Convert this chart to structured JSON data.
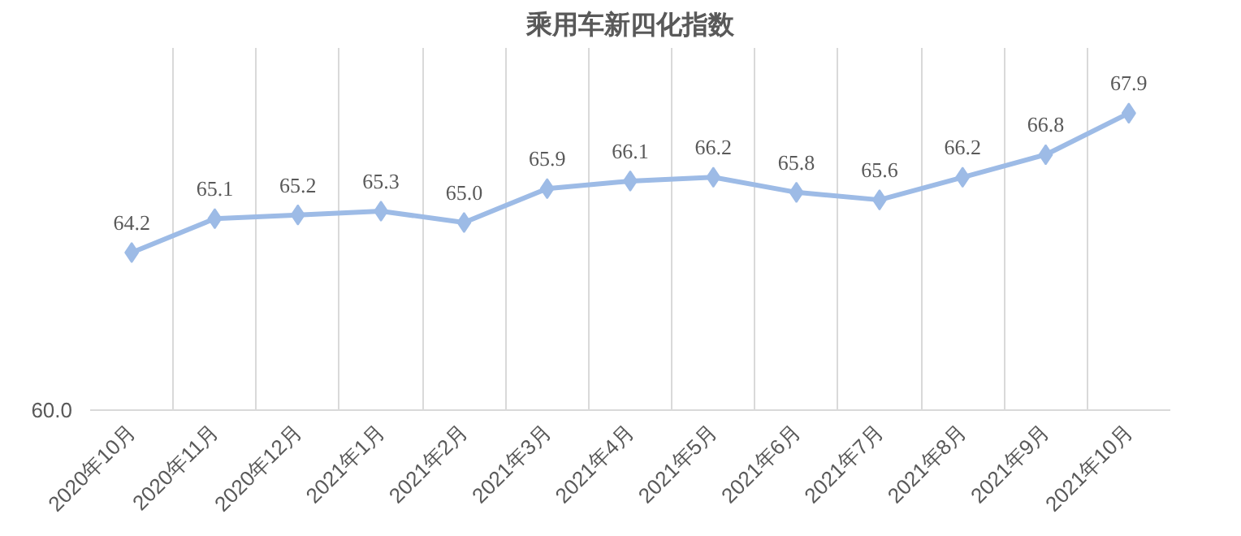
{
  "chart_data": {
    "type": "line",
    "title": "乘用车新四化指数",
    "categories": [
      "2020年10月",
      "2020年11月",
      "2020年12月",
      "2021年1月",
      "2021年2月",
      "2021年3月",
      "2021年4月",
      "2021年5月",
      "2021年6月",
      "2021年7月",
      "2021年8月",
      "2021年9月",
      "2021年10月"
    ],
    "series": [
      {
        "color": "#9dbbe6",
        "values": [
          64.2,
          65.1,
          65.2,
          65.3,
          65.0,
          65.9,
          66.1,
          66.2,
          65.8,
          65.6,
          66.2,
          66.8,
          67.9
        ],
        "value_labels": [
          "64.2",
          "65.1",
          "65.2",
          "65.3",
          "65.0",
          "65.9",
          "66.1",
          "66.2",
          "65.8",
          "65.6",
          "66.2",
          "66.8",
          "67.9"
        ]
      }
    ],
    "annotations": [
      "60.0"
    ],
    "grid": "x",
    "marker": "diamond",
    "line_style": "solid"
  }
}
